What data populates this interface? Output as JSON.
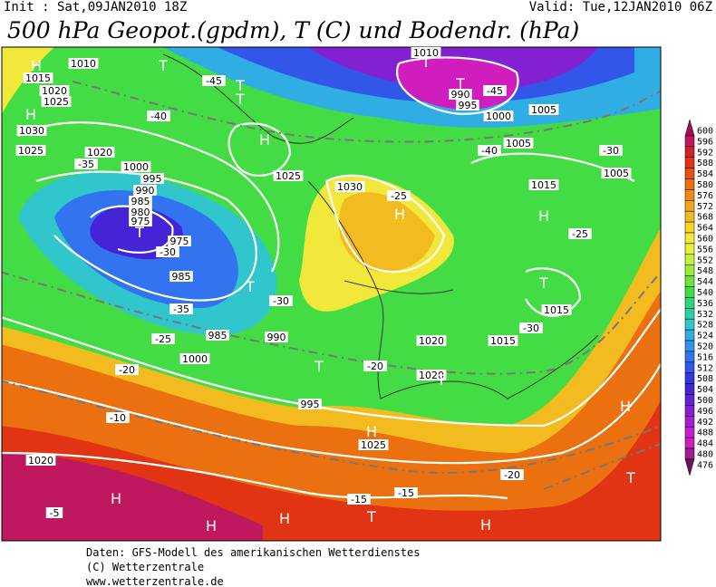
{
  "header": {
    "init": "Init : Sat,09JAN2010 18Z",
    "valid": "Valid: Tue,12JAN2010 06Z",
    "title": "500 hPa Geopot.(gpdm), T (C) und Bodendr. (hPa)"
  },
  "colorbar": {
    "values": [
      600,
      596,
      592,
      588,
      584,
      580,
      576,
      572,
      568,
      564,
      560,
      556,
      552,
      548,
      544,
      540,
      536,
      532,
      528,
      524,
      520,
      516,
      512,
      508,
      504,
      500,
      496,
      492,
      488,
      484,
      480,
      476
    ],
    "colors": [
      "#a0104e",
      "#c0185e",
      "#d02028",
      "#e03414",
      "#e45210",
      "#ea7010",
      "#f08a14",
      "#f2a41c",
      "#f2bc20",
      "#f4d424",
      "#f2e83c",
      "#e4f23c",
      "#c4f03c",
      "#9cec3c",
      "#6ee43c",
      "#44dc44",
      "#30d676",
      "#30d0a4",
      "#30c6cc",
      "#30aee4",
      "#3292f0",
      "#3274f0",
      "#3256e8",
      "#3436e0",
      "#4424d4",
      "#6022d2",
      "#8220d2",
      "#a420d2",
      "#c220d0",
      "#d01ebe",
      "#a01e92",
      "#701060"
    ]
  },
  "map_labels": [
    "H",
    "T",
    "1010",
    "1015",
    "1020",
    "1025",
    "H",
    "-45",
    "T",
    "T",
    "-40",
    "1030",
    "1025",
    "-35",
    "1020",
    "1000",
    "995",
    "990",
    "985",
    "980",
    "975",
    "T",
    "975",
    "-30",
    "985",
    "T",
    "-35",
    "-30",
    "985",
    "990",
    "1000",
    "-25",
    "-20",
    "T",
    "H",
    "1025",
    "1030",
    "H",
    "-25",
    "T",
    "T",
    "1010",
    "1005",
    "1000",
    "-40",
    "990",
    "995",
    "-45",
    "1005",
    "-30",
    "1015",
    "-25",
    "H",
    "T",
    "1020",
    "-20",
    "1015",
    "1020",
    "H",
    "1025",
    "-15",
    "T",
    "H",
    "H",
    "-10",
    "1020",
    "-5",
    "H",
    "H",
    "T",
    "-15",
    "-20",
    "T",
    "H",
    "-30",
    "1015",
    "1005",
    "995"
  ],
  "footer": [
    "Daten: GFS-Modell des amerikanischen Wetterdienstes",
    "(C) Wetterzentrale",
    "www.wetterzentrale.de"
  ]
}
